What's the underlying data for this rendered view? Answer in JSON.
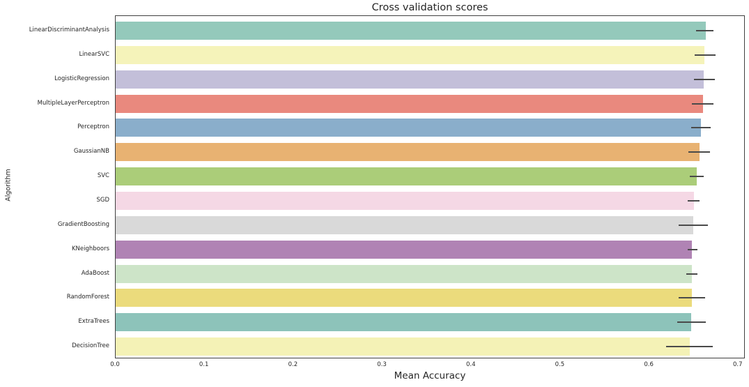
{
  "chart_data": {
    "type": "bar",
    "orientation": "horizontal",
    "title": "Cross validation scores",
    "xlabel": "Mean Accuracy",
    "ylabel": "Algorithm",
    "xlim": [
      0,
      0.708
    ],
    "x_ticks": [
      "0.0",
      "0.1",
      "0.2",
      "0.3",
      "0.4",
      "0.5",
      "0.6",
      "0.7"
    ],
    "x_tick_values": [
      0.0,
      0.1,
      0.2,
      0.3,
      0.4,
      0.5,
      0.6,
      0.7
    ],
    "grid": false,
    "legend": null,
    "error_bar_color": "#4a4a4a",
    "categories": [
      "LinearDiscriminantAnalysis",
      "LinearSVC",
      "LogisticRegression",
      "MultipleLayerPerceptron",
      "Perceptron",
      "GaussianNB",
      "SVC",
      "SGD",
      "GradientBoosting",
      "KNeighboors",
      "AdaBoost",
      "RandomForest",
      "ExtraTrees",
      "DecisionTree"
    ],
    "values": [
      0.663,
      0.662,
      0.661,
      0.66,
      0.658,
      0.656,
      0.653,
      0.65,
      0.649,
      0.648,
      0.648,
      0.648,
      0.647,
      0.645
    ],
    "error_low": [
      0.652,
      0.651,
      0.65,
      0.648,
      0.647,
      0.644,
      0.645,
      0.643,
      0.633,
      0.643,
      0.641,
      0.633,
      0.631,
      0.619
    ],
    "error_high": [
      0.672,
      0.674,
      0.674,
      0.672,
      0.669,
      0.668,
      0.661,
      0.656,
      0.666,
      0.654,
      0.654,
      0.663,
      0.663,
      0.671
    ],
    "bar_colors": [
      "#94c9bb",
      "#f5f3ba",
      "#c3bfd9",
      "#e9897e",
      "#8aaecb",
      "#e8b272",
      "#abcd79",
      "#f5d8e5",
      "#d9d9d9",
      "#b083b4",
      "#cde4c8",
      "#ebdb7c",
      "#8dc3ba",
      "#f4f2b6"
    ]
  },
  "layout_colors": {
    "background": "#ffffff",
    "spine": "#3f3f3f",
    "text": "#262626"
  }
}
